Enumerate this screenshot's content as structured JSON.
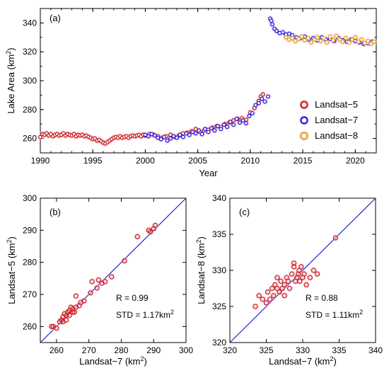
{
  "colors": {
    "landsat5": "#c81e1e",
    "landsat7": "#1e1ee6",
    "landsat8": "#e6a51e",
    "halo": "#f7c4d4",
    "line": "#1f1fc8",
    "axis": "#000000"
  },
  "chart_data": [
    {
      "type": "scatter",
      "panel": "(a)",
      "xlabel": "Year",
      "ylabel": "Lake Area (km",
      "ylabel_sup": "2",
      "ylabel_end": ")",
      "xlim": [
        1990,
        2022
      ],
      "ylim": [
        250,
        350
      ],
      "xticks": [
        "1990",
        "1995",
        "2000",
        "2005",
        "2010",
        "2015",
        "2020"
      ],
      "yticks": [
        "260",
        "280",
        "300",
        "320",
        "340"
      ],
      "legend_position": "right",
      "series": [
        {
          "name": "Landsat−5",
          "color": "#c81e1e",
          "points": [
            [
              1990.0,
              261.0
            ],
            [
              1990.2,
              263.0
            ],
            [
              1990.4,
              262.5
            ],
            [
              1990.6,
              263.5
            ],
            [
              1990.8,
              262.0
            ],
            [
              1991.0,
              263.0
            ],
            [
              1991.2,
              261.5
            ],
            [
              1991.4,
              262.5
            ],
            [
              1991.6,
              263.0
            ],
            [
              1991.8,
              262.0
            ],
            [
              1992.0,
              262.5
            ],
            [
              1992.2,
              263.5
            ],
            [
              1992.4,
              262.0
            ],
            [
              1992.6,
              263.0
            ],
            [
              1992.8,
              262.5
            ],
            [
              1993.0,
              262.0
            ],
            [
              1993.2,
              263.0
            ],
            [
              1993.4,
              261.5
            ],
            [
              1993.6,
              262.5
            ],
            [
              1993.8,
              262.0
            ],
            [
              1994.0,
              262.5
            ],
            [
              1994.2,
              261.5
            ],
            [
              1994.4,
              262.0
            ],
            [
              1994.6,
              261.0
            ],
            [
              1994.8,
              260.5
            ],
            [
              1995.0,
              259.5
            ],
            [
              1995.2,
              260.0
            ],
            [
              1995.4,
              258.5
            ],
            [
              1995.6,
              259.0
            ],
            [
              1995.8,
              258.0
            ],
            [
              1996.0,
              257.0
            ],
            [
              1996.2,
              256.5
            ],
            [
              1996.4,
              257.5
            ],
            [
              1996.6,
              258.5
            ],
            [
              1996.8,
              259.5
            ],
            [
              1997.0,
              260.5
            ],
            [
              1997.2,
              261.0
            ],
            [
              1997.4,
              260.5
            ],
            [
              1997.6,
              261.5
            ],
            [
              1997.8,
              260.5
            ],
            [
              1998.0,
              261.0
            ],
            [
              1998.2,
              261.5
            ],
            [
              1998.4,
              260.5
            ],
            [
              1998.6,
              261.5
            ],
            [
              1998.8,
              262.0
            ],
            [
              1999.0,
              261.5
            ],
            [
              1999.2,
              262.0
            ],
            [
              1999.4,
              262.5
            ],
            [
              1999.6,
              261.5
            ],
            [
              1999.8,
              262.5
            ],
            [
              2000.0,
              262.0
            ],
            [
              2000.4,
              263.0
            ],
            [
              2000.8,
              262.5
            ],
            [
              2001.2,
              261.5
            ],
            [
              2001.6,
              260.5
            ],
            [
              2002.0,
              261.5
            ],
            [
              2002.4,
              262.5
            ],
            [
              2002.8,
              261.0
            ],
            [
              2003.2,
              262.0
            ],
            [
              2003.6,
              263.5
            ],
            [
              2004.0,
              264.0
            ],
            [
              2004.4,
              265.0
            ],
            [
              2004.8,
              266.5
            ],
            [
              2005.2,
              264.5
            ],
            [
              2005.6,
              265.5
            ],
            [
              2006.0,
              266.0
            ],
            [
              2006.4,
              267.5
            ],
            [
              2006.8,
              268.5
            ],
            [
              2007.2,
              268.0
            ],
            [
              2007.6,
              270.0
            ],
            [
              2008.0,
              271.0
            ],
            [
              2008.4,
              272.5
            ],
            [
              2008.8,
              273.5
            ],
            [
              2009.2,
              274.0
            ],
            [
              2009.6,
              273.0
            ],
            [
              2010.0,
              278.0
            ],
            [
              2010.4,
              281.0
            ],
            [
              2010.8,
              286.0
            ],
            [
              2011.0,
              289.0
            ],
            [
              2011.2,
              290.5
            ]
          ]
        },
        {
          "name": "Landsat−7",
          "color": "#1e1ee6",
          "points": [
            [
              2000.0,
              262.5
            ],
            [
              2000.3,
              261.5
            ],
            [
              2000.6,
              263.0
            ],
            [
              2000.9,
              262.0
            ],
            [
              2001.2,
              260.5
            ],
            [
              2001.5,
              259.5
            ],
            [
              2001.8,
              261.0
            ],
            [
              2002.1,
              258.5
            ],
            [
              2002.4,
              260.0
            ],
            [
              2002.7,
              261.5
            ],
            [
              2003.0,
              260.5
            ],
            [
              2003.3,
              262.5
            ],
            [
              2003.6,
              261.0
            ],
            [
              2003.9,
              263.5
            ],
            [
              2004.2,
              262.5
            ],
            [
              2004.5,
              264.5
            ],
            [
              2004.8,
              263.5
            ],
            [
              2005.1,
              265.5
            ],
            [
              2005.4,
              263.0
            ],
            [
              2005.7,
              266.5
            ],
            [
              2006.0,
              264.5
            ],
            [
              2006.3,
              267.0
            ],
            [
              2006.6,
              265.5
            ],
            [
              2006.9,
              268.5
            ],
            [
              2007.2,
              266.5
            ],
            [
              2007.5,
              269.5
            ],
            [
              2007.8,
              268.0
            ],
            [
              2008.1,
              271.5
            ],
            [
              2008.4,
              269.5
            ],
            [
              2008.7,
              273.5
            ],
            [
              2009.0,
              271.0
            ],
            [
              2009.3,
              272.5
            ],
            [
              2009.6,
              270.5
            ],
            [
              2009.9,
              275.5
            ],
            [
              2010.2,
              277.5
            ],
            [
              2010.5,
              283.0
            ],
            [
              2010.8,
              284.5
            ],
            [
              2011.1,
              287.5
            ],
            [
              2011.4,
              285.5
            ],
            [
              2011.7,
              289.0
            ],
            [
              2011.9,
              343.0
            ],
            [
              2012.0,
              341.5
            ],
            [
              2012.1,
              339.0
            ],
            [
              2012.3,
              336.0
            ],
            [
              2012.5,
              334.5
            ],
            [
              2012.8,
              333.0
            ],
            [
              2013.1,
              333.5
            ],
            [
              2013.4,
              332.0
            ],
            [
              2013.7,
              332.5
            ],
            [
              2014.0,
              331.5
            ],
            [
              2014.4,
              330.0
            ],
            [
              2014.8,
              329.5
            ],
            [
              2015.2,
              330.5
            ],
            [
              2015.6,
              328.5
            ],
            [
              2016.0,
              329.5
            ],
            [
              2016.4,
              328.0
            ],
            [
              2016.8,
              330.0
            ],
            [
              2017.2,
              328.5
            ],
            [
              2017.6,
              329.0
            ],
            [
              2018.0,
              327.5
            ],
            [
              2018.4,
              329.5
            ],
            [
              2018.8,
              328.0
            ],
            [
              2019.2,
              327.0
            ],
            [
              2019.6,
              328.5
            ],
            [
              2020.0,
              327.5
            ],
            [
              2020.4,
              326.5
            ],
            [
              2020.8,
              325.5
            ],
            [
              2021.2,
              326.0
            ],
            [
              2021.6,
              327.0
            ]
          ]
        },
        {
          "name": "Landsat−8",
          "color": "#e6a51e",
          "points": [
            [
              2013.4,
              330.0
            ],
            [
              2013.7,
              328.5
            ],
            [
              2014.0,
              329.5
            ],
            [
              2014.3,
              327.5
            ],
            [
              2014.6,
              329.0
            ],
            [
              2014.9,
              330.5
            ],
            [
              2015.2,
              328.0
            ],
            [
              2015.5,
              329.5
            ],
            [
              2015.8,
              326.5
            ],
            [
              2016.1,
              328.5
            ],
            [
              2016.4,
              330.0
            ],
            [
              2016.7,
              327.5
            ],
            [
              2017.0,
              329.5
            ],
            [
              2017.3,
              326.5
            ],
            [
              2017.6,
              330.5
            ],
            [
              2017.9,
              328.0
            ],
            [
              2018.2,
              331.0
            ],
            [
              2018.5,
              328.5
            ],
            [
              2018.8,
              327.0
            ],
            [
              2019.1,
              329.5
            ],
            [
              2019.4,
              326.5
            ],
            [
              2019.7,
              328.5
            ],
            [
              2020.0,
              330.0
            ],
            [
              2020.3,
              327.0
            ],
            [
              2020.6,
              328.5
            ],
            [
              2020.9,
              326.0
            ],
            [
              2021.2,
              327.5
            ],
            [
              2021.5,
              325.5
            ],
            [
              2021.8,
              327.0
            ]
          ]
        }
      ]
    },
    {
      "type": "scatter",
      "panel": "(b)",
      "xlabel": "Landsat−7 (km",
      "xlabel_sup": "2",
      "xlabel_end": ")",
      "ylabel": "Landsat−5 (km",
      "ylabel_sup": "2",
      "ylabel_end": ")",
      "xlim": [
        255,
        300
      ],
      "ylim": [
        255,
        300
      ],
      "xticks": [
        "260",
        "270",
        "280",
        "290",
        "300"
      ],
      "yticks": [
        "260",
        "270",
        "280",
        "290",
        "300"
      ],
      "stat_r": "R = 0.99",
      "stat_std": "STD = 1.17km",
      "stat_std_sup": "2",
      "color": "#c81e1e",
      "points": [
        [
          258.5,
          260.0
        ],
        [
          259.0,
          260.0
        ],
        [
          260.0,
          259.5
        ],
        [
          261.0,
          261.5
        ],
        [
          261.5,
          262.0
        ],
        [
          262.0,
          263.0
        ],
        [
          262.0,
          261.5
        ],
        [
          262.5,
          264.0
        ],
        [
          263.0,
          263.5
        ],
        [
          263.0,
          262.0
        ],
        [
          263.5,
          264.5
        ],
        [
          264.0,
          265.0
        ],
        [
          264.0,
          263.5
        ],
        [
          264.5,
          266.0
        ],
        [
          265.0,
          264.5
        ],
        [
          265.0,
          265.5
        ],
        [
          265.5,
          264.5
        ],
        [
          266.0,
          266.0
        ],
        [
          266.0,
          269.5
        ],
        [
          267.0,
          266.5
        ],
        [
          267.5,
          267.5
        ],
        [
          268.5,
          268.0
        ],
        [
          270.5,
          270.5
        ],
        [
          271.0,
          274.0
        ],
        [
          272.5,
          272.0
        ],
        [
          273.0,
          274.5
        ],
        [
          274.0,
          273.5
        ],
        [
          275.0,
          274.0
        ],
        [
          277.0,
          275.5
        ],
        [
          281.0,
          280.5
        ],
        [
          285.0,
          288.0
        ],
        [
          288.5,
          290.0
        ],
        [
          289.0,
          289.5
        ],
        [
          290.0,
          290.5
        ],
        [
          290.5,
          291.5
        ]
      ]
    },
    {
      "type": "scatter",
      "panel": "(c)",
      "xlabel": "Landsat−7 (km",
      "xlabel_sup": "2",
      "xlabel_end": ")",
      "ylabel": "Landsat−8 (km",
      "ylabel_sup": "2",
      "ylabel_end": ")",
      "xlim": [
        320,
        340
      ],
      "ylim": [
        320,
        340
      ],
      "xticks": [
        "320",
        "325",
        "330",
        "335",
        "340"
      ],
      "yticks": [
        "320",
        "325",
        "330",
        "335",
        "340"
      ],
      "stat_r": "R = 0.88",
      "stat_std": "STD = 1.11km",
      "stat_std_sup": "2",
      "color": "#c81e1e",
      "points": [
        [
          323.5,
          325.0
        ],
        [
          324.0,
          326.5
        ],
        [
          324.5,
          326.0
        ],
        [
          325.0,
          325.5
        ],
        [
          325.2,
          327.0
        ],
        [
          325.5,
          326.0
        ],
        [
          325.8,
          327.5
        ],
        [
          326.0,
          326.5
        ],
        [
          326.2,
          328.0
        ],
        [
          326.5,
          327.5
        ],
        [
          326.8,
          327.0
        ],
        [
          327.0,
          328.5
        ],
        [
          327.2,
          327.5
        ],
        [
          327.5,
          328.0
        ],
        [
          327.8,
          329.0
        ],
        [
          328.0,
          328.5
        ],
        [
          328.2,
          327.5
        ],
        [
          328.5,
          329.5
        ],
        [
          328.8,
          331.0
        ],
        [
          328.8,
          330.5
        ],
        [
          329.0,
          328.5
        ],
        [
          329.2,
          329.0
        ],
        [
          329.4,
          329.5
        ],
        [
          329.5,
          330.0
        ],
        [
          329.6,
          328.5
        ],
        [
          329.8,
          330.5
        ],
        [
          330.0,
          329.0
        ],
        [
          330.2,
          329.5
        ],
        [
          330.5,
          328.0
        ],
        [
          331.0,
          329.0
        ],
        [
          331.5,
          330.0
        ],
        [
          332.0,
          329.5
        ],
        [
          326.5,
          329.0
        ],
        [
          327.5,
          326.5
        ],
        [
          334.5,
          334.5
        ]
      ]
    }
  ]
}
